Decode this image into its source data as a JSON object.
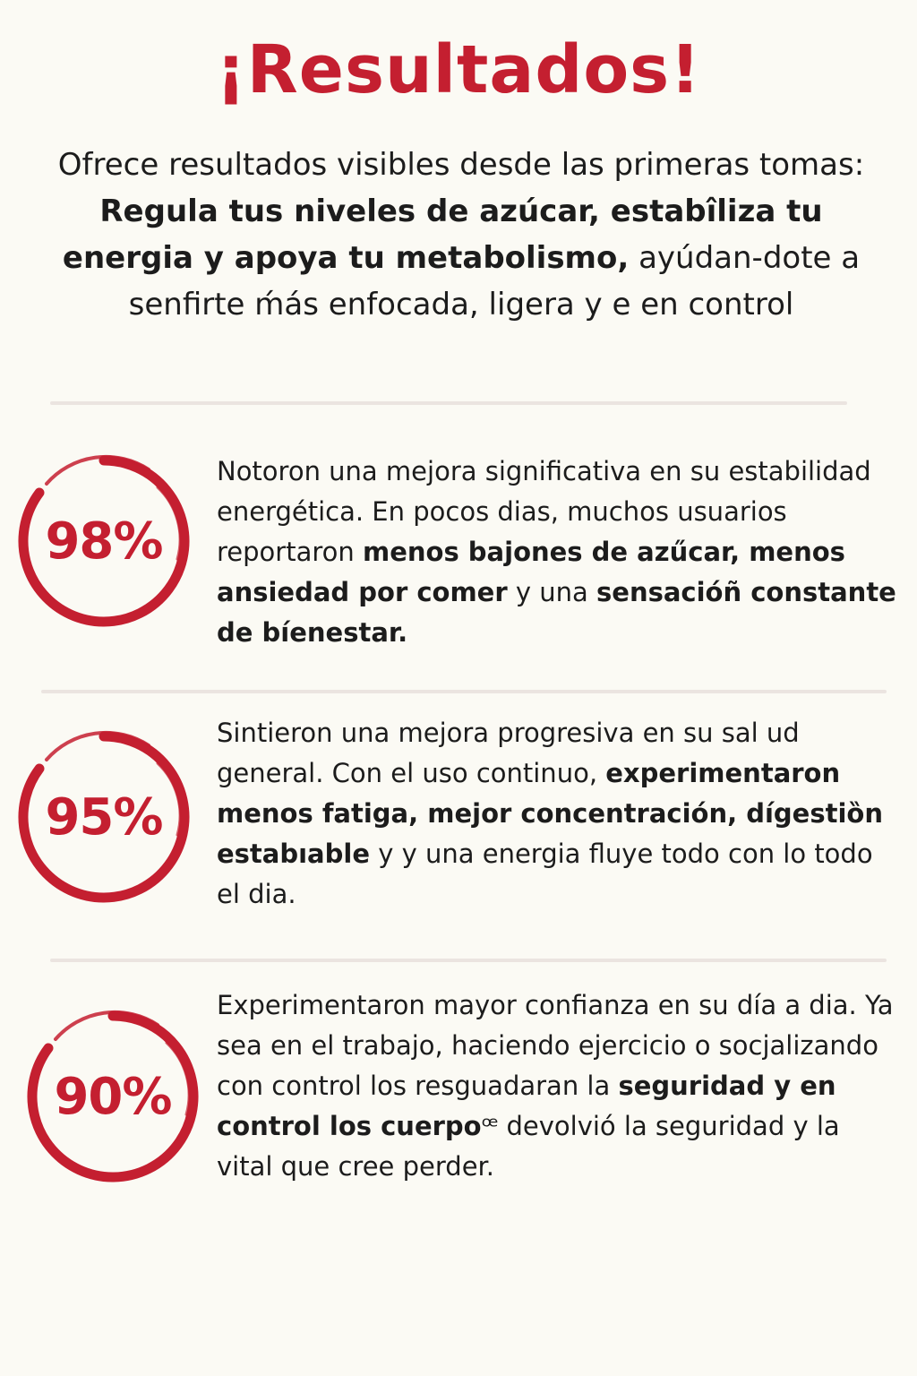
{
  "title": "¡Resultados!",
  "intro": {
    "part1": "Ofrece resultados visibles desde las primeras tomas: ",
    "bold": "Regula tus niveles de azúcar, estabîliza tu energia y apoya tu metabolismo,",
    "part2": " ayúdan-dote a senfirte ḿás enfocada, ligera y e en control"
  },
  "stats": [
    {
      "value": "98%",
      "text_parts": [
        {
          "t": "Notoron una mejora significativa en su estabilidad energética. En pocos dias, muchos usuarios reportaron ",
          "bold": false
        },
        {
          "t": "menos bajones de azűcar, menos ansiedad por comer",
          "bold": true
        },
        {
          "t": " y una ",
          "bold": false
        },
        {
          "t": "sensacióñ constante de bíenestar.",
          "bold": true
        }
      ]
    },
    {
      "value": "95%",
      "text_parts": [
        {
          "t": "Sintieron una mejora progresiva en su sal ud general. Con el uso continuo, ",
          "bold": false
        },
        {
          "t": "experimentaron menos fatiga,  mejor concentración, dígestiȍn estabıable",
          "bold": true
        },
        {
          "t": " y y una energia fluye todo con lo todo el dia.",
          "bold": false
        }
      ]
    },
    {
      "value": "90%",
      "text_parts": [
        {
          "t": "Experimentaron mayor confianza en su día a dia. Ya sea en el trabajo, haciendo ejercicio o socjalizando con control los resguadaran la ",
          "bold": false
        },
        {
          "t": "seguridad y en control los cuerpo",
          "bold": true
        },
        {
          "t": "ꟹ devolvió la seguridad y la vital que cree perder.",
          "bold": false
        }
      ]
    }
  ]
}
